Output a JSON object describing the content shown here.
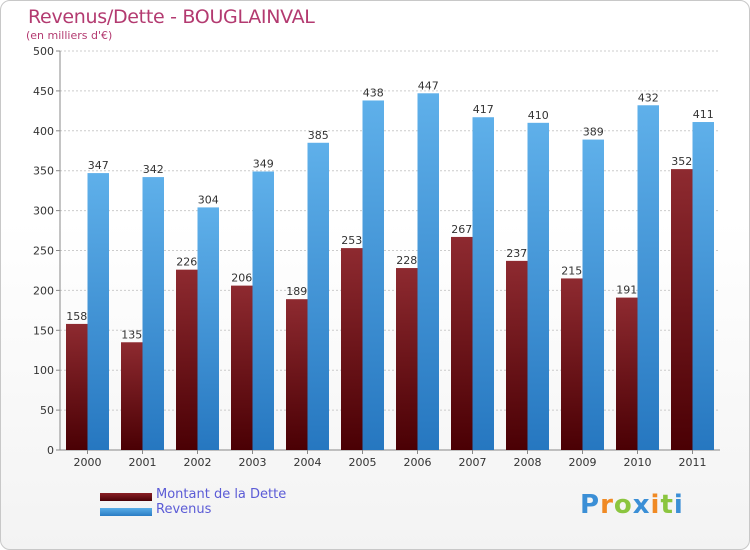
{
  "chart_data": {
    "type": "bar",
    "title": "Revenus/Dette - BOUGLAINVAL",
    "subtitle": "(en milliers d'€)",
    "categories": [
      "2000",
      "2001",
      "2002",
      "2003",
      "2004",
      "2005",
      "2006",
      "2007",
      "2008",
      "2009",
      "2010",
      "2011"
    ],
    "series": [
      {
        "name": "Montant de la Dette",
        "values": [
          158,
          135,
          226,
          206,
          189,
          253,
          228,
          267,
          237,
          215,
          191,
          352
        ],
        "color": "#6b1418"
      },
      {
        "name": "Revenus",
        "values": [
          347,
          342,
          304,
          349,
          385,
          438,
          447,
          417,
          410,
          389,
          432,
          411
        ],
        "color": "#3f96dc"
      }
    ],
    "ylim": [
      0,
      500
    ],
    "yticks": [
      0,
      50,
      100,
      150,
      200,
      250,
      300,
      350,
      400,
      450,
      500
    ],
    "grid": true,
    "legend": "bottom-left"
  },
  "logo": {
    "letters": [
      "P",
      "r",
      "o",
      "x",
      "i",
      "t",
      "i"
    ],
    "colors": [
      "#3b8fd6",
      "#f08a24",
      "#8bc53f",
      "#3b8fd6",
      "#f08a24",
      "#8bc53f",
      "#3b8fd6"
    ]
  }
}
